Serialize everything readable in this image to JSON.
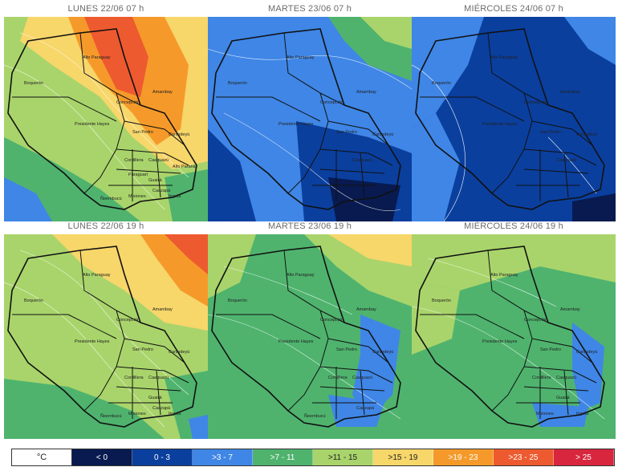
{
  "panels": [
    {
      "title": "LUNES 22/06 07 h"
    },
    {
      "title": "MARTES 23/06 07 h"
    },
    {
      "title": "MIÉRCOLES 24/06 07 h"
    },
    {
      "title": "LUNES 22/06 19 h"
    },
    {
      "title": "MARTES 23/06 19 h"
    },
    {
      "title": "MIÉRCOLES 24/06 19 h"
    }
  ],
  "departments": {
    "alto_paraguay": "Alto Paraguay",
    "boqueron": "Boquerón",
    "presidente_hayes": "Presidente Hayes",
    "concepcion": "Concepción",
    "amambay": "Amambay",
    "san_pedro": "San Pedro",
    "canindeyu": "Canindeyú",
    "caaguazu": "Caaguazú",
    "alto_parana": "Alto Paraná",
    "cordillera": "Cordillera",
    "paraguari": "Paraguarí",
    "guaira": "Guairá",
    "caazapa": "Caazapá",
    "misiones": "Misiones",
    "neembucu": "Ñeembucú",
    "itapua": "Itapúa"
  },
  "legend": {
    "unit": "°C",
    "items": [
      {
        "label": "< 0",
        "color": "#081a4f"
      },
      {
        "label": "0 - 3",
        "color": "#0a3f9e"
      },
      {
        "label": ">3 - 7",
        "color": "#3f86e6"
      },
      {
        "label": ">7 - 11",
        "color": "#4fb36e"
      },
      {
        "label": ">11 - 15",
        "color": "#a9d46b"
      },
      {
        "label": ">15 - 19",
        "color": "#f7d66a"
      },
      {
        "label": ">19 - 23",
        "color": "#f59a2a"
      },
      {
        "label": ">23 - 25",
        "color": "#ee5a2f"
      },
      {
        "label": "> 25",
        "color": "#d7263d"
      }
    ]
  }
}
